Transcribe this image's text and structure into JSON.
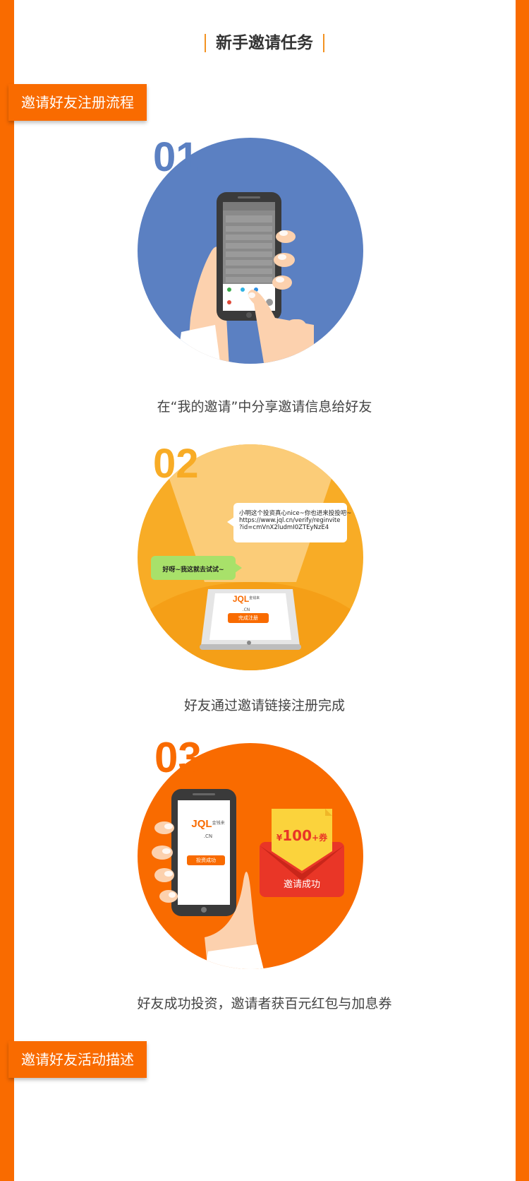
{
  "header": {
    "title": "新手邀请任务"
  },
  "sections": {
    "flow_tag": "邀请好友注册流程",
    "desc_tag": "邀请好友活动描述"
  },
  "steps": [
    {
      "number": "01",
      "caption": "在“我的邀请”中分享邀请信息给好友",
      "color": "#5b80c2"
    },
    {
      "number": "02",
      "caption": "好友通过邀请链接注册完成",
      "color": "#f8ac26",
      "bubble_right": [
        "小明这个投资真心nice~你也进来投投吧~",
        "https://www.jql.cn/verify/reginvite",
        "?id=cmVnX2ludmI0ZTEyNzE4"
      ],
      "bubble_left": "好呀~我这就去试试~",
      "tablet_logo": "JQL",
      "tablet_logo_sub": "金钱来",
      "tablet_logo_cn": ".CN",
      "tablet_button": "完成注册"
    },
    {
      "number": "03",
      "caption": "好友成功投资，邀请者获百元红包与加息券",
      "color": "#f96b00",
      "phone_logo": "JQL",
      "phone_logo_sub": "金钱来",
      "phone_logo_cn": ".CN",
      "phone_button": "投资成功",
      "coupon": "¥100+券",
      "coupon_yen": "¥",
      "coupon_value": "100",
      "coupon_plus": "+券",
      "envelope_text": "邀请成功"
    }
  ],
  "colors": {
    "accent": "#f96b00",
    "blue": "#5b80c2",
    "yellow": "#f8ac26"
  }
}
